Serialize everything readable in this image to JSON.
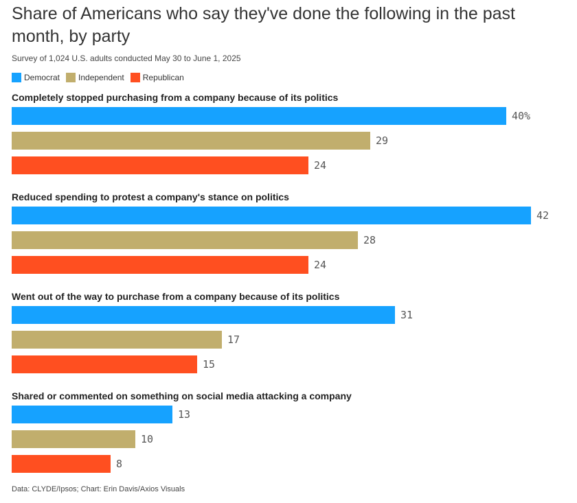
{
  "title": "Share of Americans who say they've done the following in the past month, by party",
  "subtitle": "Survey of 1,024 U.S. adults conducted May 30 to June 1, 2025",
  "footer": "Data: CLYDE/Ipsos; Chart: Erin Davis/Axios Visuals",
  "chart_data": {
    "type": "bar",
    "orientation": "horizontal",
    "unit": "%",
    "xlim": [
      0,
      42
    ],
    "legend_position": "top-left",
    "series": [
      {
        "name": "Democrat",
        "color": "#16a2ff"
      },
      {
        "name": "Independent",
        "color": "#c1ae6d"
      },
      {
        "name": "Republican",
        "color": "#ff4f20"
      }
    ],
    "groups": [
      {
        "label": "Completely stopped purchasing from a company because of its politics",
        "values": [
          40,
          29,
          24
        ],
        "value_labels": [
          "40%",
          "29",
          "24"
        ]
      },
      {
        "label": "Reduced spending to protest a company's stance on politics",
        "values": [
          42,
          28,
          24
        ],
        "value_labels": [
          "42",
          "28",
          "24"
        ]
      },
      {
        "label": "Went out of the way to purchase from a company because of its politics",
        "values": [
          31,
          17,
          15
        ],
        "value_labels": [
          "31",
          "17",
          "15"
        ]
      },
      {
        "label": "Shared or commented on something on social media attacking a company",
        "values": [
          13,
          10,
          8
        ],
        "value_labels": [
          "13",
          "10",
          "8"
        ]
      }
    ]
  }
}
